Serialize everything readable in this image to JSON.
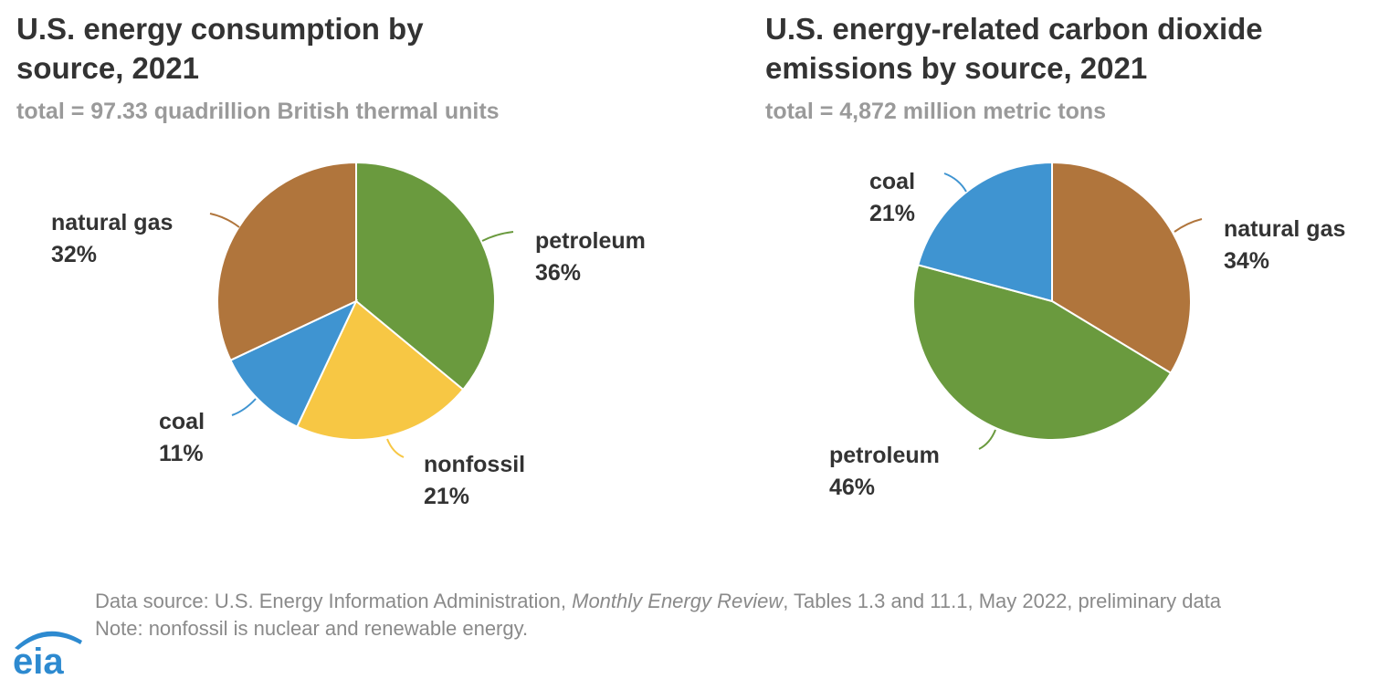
{
  "chart_data": [
    {
      "type": "pie",
      "title": "U.S. energy consumption by source, 2021",
      "title_lines": [
        "U.S. energy consumption by",
        "source, 2021"
      ],
      "subtitle": "total = 97.33 quadrillion British thermal units",
      "slices": [
        {
          "label": "petroleum",
          "percent_label": "36%",
          "value": 36,
          "color": "#6a9a3e"
        },
        {
          "label": "nonfossil",
          "percent_label": "21%",
          "value": 21,
          "color": "#f7c744"
        },
        {
          "label": "coal",
          "percent_label": "11%",
          "value": 11,
          "color": "#3f94d1"
        },
        {
          "label": "natural gas",
          "percent_label": "32%",
          "value": 32,
          "color": "#b0753c"
        }
      ]
    },
    {
      "type": "pie",
      "title": "U.S. energy-related carbon dioxide emissions by source, 2021",
      "title_lines": [
        "U.S. energy-related carbon dioxide",
        "emissions by source, 2021"
      ],
      "subtitle": "total = 4,872 million metric tons",
      "slices": [
        {
          "label": "natural gas",
          "percent_label": "34%",
          "value": 34,
          "color": "#b0753c"
        },
        {
          "label": "petroleum",
          "percent_label": "46%",
          "value": 46,
          "color": "#6a9a3e"
        },
        {
          "label": "coal",
          "percent_label": "21%",
          "value": 21,
          "color": "#3f94d1"
        }
      ]
    }
  ],
  "footer": {
    "source_prefix": "Data source: U.S. Energy Information Administration, ",
    "source_publication": "Monthly Energy Review",
    "source_suffix": ", Tables 1.3 and 11.1, May 2022, preliminary data",
    "note": "Note: nonfossil is nuclear and renewable energy."
  },
  "logo": {
    "text": "eia",
    "color": "#2d8ad0"
  }
}
